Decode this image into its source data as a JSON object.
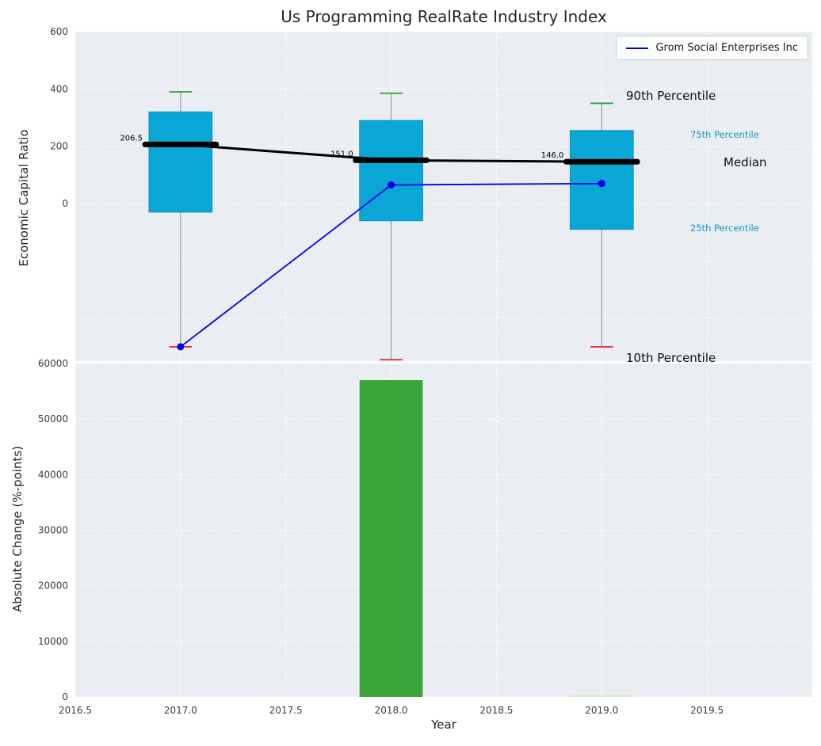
{
  "title": "Us Programming RealRate Industry Index",
  "legend": {
    "label": "Grom Social Enterprises Inc",
    "position": "upper right"
  },
  "annotations": {
    "p90": "90th Percentile",
    "p75": "75th Percentile",
    "median": "Median",
    "p25": "25th Percentile",
    "p10": "10th Percentile"
  },
  "colors": {
    "figure_bg": "#ffffff",
    "axes_bg": "#eaeef2",
    "grid": "#ffffff",
    "box_fill": "#0aa6d6",
    "box_edge": "#0a93bd",
    "median": "#000000",
    "whisker": "#8a8a8a",
    "cap_high": "#2e9e2e",
    "cap_low": "#e53333",
    "company_line": "#0000e6",
    "bar_green": "#3aa43a",
    "bar_faint": "#dde8cf",
    "tick_text": "#3b3b4c",
    "cyan_text": "#1598c0",
    "title_text": "#262626"
  },
  "chart_data": [
    {
      "type": "boxplot+line",
      "title": "Us Programming RealRate Industry Index",
      "ylabel": "Economic Capital Ratio",
      "xlim": [
        2016.5,
        2020.0
      ],
      "ylim": [
        -550,
        600
      ],
      "yticks": [
        0,
        200,
        400,
        600
      ],
      "ytick_labels": [
        "0",
        "200",
        "400",
        "600"
      ],
      "grid_yticks": [
        -400,
        -200,
        0,
        200,
        400,
        600
      ],
      "box_width_years": 0.3,
      "grid": true,
      "legend_position": "upper right",
      "boxes": [
        {
          "x": 2017,
          "p10": -500,
          "q1": -30,
          "median": 206.5,
          "q3": 320,
          "p90": 390,
          "median_label": "206.5"
        },
        {
          "x": 2018,
          "p10": -545,
          "q1": -60,
          "median": 151.0,
          "q3": 290,
          "p90": 385,
          "median_label": "151.0"
        },
        {
          "x": 2019,
          "p10": -500,
          "q1": -90,
          "median": 146.0,
          "q3": 255,
          "p90": 350,
          "median_label": "146.0"
        }
      ],
      "series": [
        {
          "name": "Grom Social Enterprises Inc",
          "x": [
            2017,
            2018,
            2019
          ],
          "y": [
            -500,
            65,
            70
          ]
        }
      ]
    },
    {
      "type": "bar",
      "ylabel": "Absolute Change (%-points)",
      "xlabel": "Year",
      "xlim": [
        2016.5,
        2020.0
      ],
      "ylim": [
        0,
        60000
      ],
      "yticks": [
        0,
        10000,
        20000,
        30000,
        40000,
        50000,
        60000
      ],
      "ytick_labels": [
        "0",
        "10000",
        "20000",
        "30000",
        "40000",
        "50000",
        "60000"
      ],
      "xticks": [
        2016.5,
        2017.0,
        2017.5,
        2018.0,
        2018.5,
        2019.0,
        2019.5
      ],
      "xtick_labels": [
        "2016.5",
        "2017.0",
        "2017.5",
        "2018.0",
        "2018.5",
        "2019.0",
        "2019.5"
      ],
      "bar_width_years": 0.3,
      "grid": true,
      "bars": [
        {
          "x": 2018,
          "value": 57000,
          "color_key": "bar_green"
        },
        {
          "x": 2019,
          "value": 350,
          "color_key": "bar_faint"
        }
      ]
    }
  ]
}
